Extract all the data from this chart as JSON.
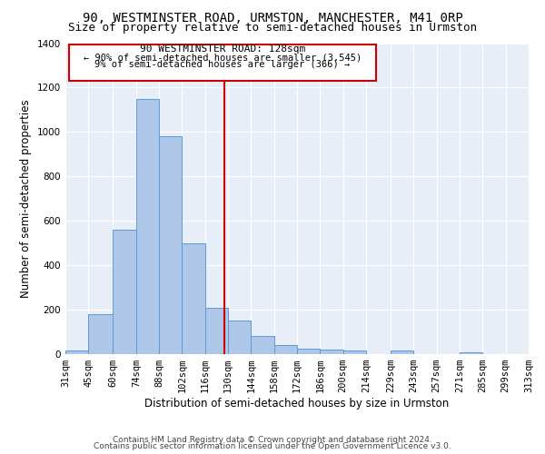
{
  "title": "90, WESTMINSTER ROAD, URMSTON, MANCHESTER, M41 0RP",
  "subtitle": "Size of property relative to semi-detached houses in Urmston",
  "xlabel": "Distribution of semi-detached houses by size in Urmston",
  "ylabel": "Number of semi-detached properties",
  "footer1": "Contains HM Land Registry data © Crown copyright and database right 2024.",
  "footer2": "Contains public sector information licensed under the Open Government Licence v3.0.",
  "annotation_title": "90 WESTMINSTER ROAD: 128sqm",
  "annotation_line1": "← 90% of semi-detached houses are smaller (3,545)",
  "annotation_line2": "9% of semi-detached houses are larger (366) →",
  "property_size": 128,
  "bin_edges": [
    31,
    45,
    60,
    74,
    88,
    102,
    116,
    130,
    144,
    158,
    172,
    186,
    200,
    214,
    229,
    243,
    257,
    271,
    285,
    299,
    313
  ],
  "bin_labels": [
    "31sqm",
    "45sqm",
    "60sqm",
    "74sqm",
    "88sqm",
    "102sqm",
    "116sqm",
    "130sqm",
    "144sqm",
    "158sqm",
    "172sqm",
    "186sqm",
    "200sqm",
    "214sqm",
    "229sqm",
    "243sqm",
    "257sqm",
    "271sqm",
    "285sqm",
    "299sqm",
    "313sqm"
  ],
  "bar_heights": [
    15,
    180,
    560,
    1150,
    980,
    500,
    210,
    150,
    80,
    40,
    25,
    20,
    15,
    0,
    15,
    0,
    0,
    10,
    0,
    0
  ],
  "bar_color": "#aec6e8",
  "bar_edgecolor": "#5b9bd5",
  "vline_x": 128,
  "vline_color": "#cc0000",
  "bg_color": "#e8eef7",
  "ylim": [
    0,
    1400
  ],
  "yticks": [
    0,
    200,
    400,
    600,
    800,
    1000,
    1200,
    1400
  ],
  "title_fontsize": 10,
  "subtitle_fontsize": 9,
  "axis_label_fontsize": 8.5,
  "tick_fontsize": 7.5,
  "annotation_fontsize": 8,
  "footer_fontsize": 6.5
}
